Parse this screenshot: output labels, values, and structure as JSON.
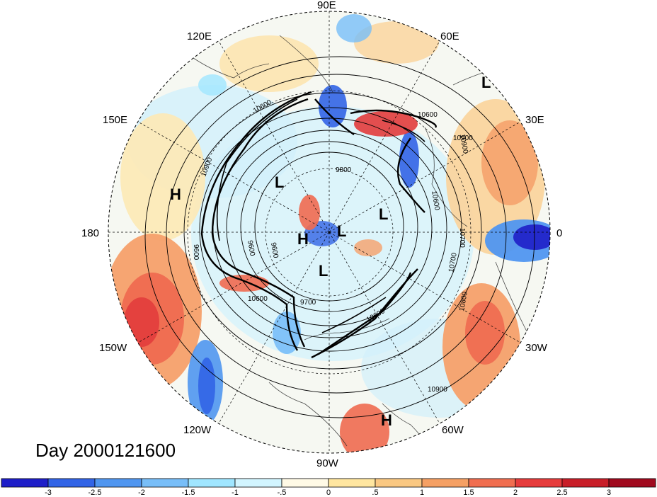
{
  "title": "Day 2000121600",
  "projection": "north-polar-stereographic",
  "longitude_labels": [
    "90E",
    "60E",
    "30E",
    "0",
    "30W",
    "60W",
    "90W",
    "120W",
    "150W",
    "180",
    "150E",
    "120E"
  ],
  "pressure_centers": [
    "H",
    "H",
    "H",
    "L",
    "L",
    "L",
    "L",
    "L"
  ],
  "contour_labels": [
    "10900",
    "10900",
    "10900",
    "10900",
    "10800",
    "10700",
    "10700",
    "10600",
    "10600",
    "10600",
    "10600",
    "10600",
    "9800",
    "9600",
    "9600",
    "9700",
    "9600"
  ],
  "colorbar": {
    "ticks": [
      "-3",
      "-2.5",
      "-2",
      "-1.5",
      "-1",
      "-.5",
      "0",
      ".5",
      "1",
      "1.5",
      "2",
      "2.5",
      "3"
    ],
    "colors": [
      "#1e1ec8",
      "#3264e6",
      "#5096f0",
      "#78bef8",
      "#a0e6ff",
      "#d2f5ff",
      "#fffae6",
      "#ffe6a0",
      "#fac882",
      "#f5a064",
      "#f06e50",
      "#e63c3c",
      "#c81e28",
      "#a00a1e"
    ]
  }
}
